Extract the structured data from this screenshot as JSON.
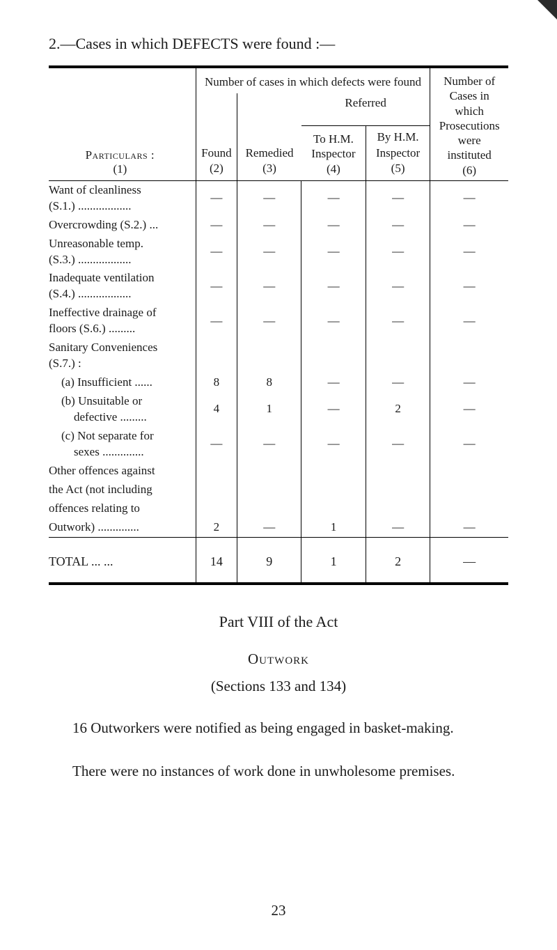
{
  "heading": "2.—Cases in which DEFECTS were found :—",
  "header": {
    "span_title": "Number of cases in which defects were found",
    "referred": "Referred",
    "particulars_label": "Particulars :",
    "particulars_num": "(1)",
    "found": "Found",
    "found_num": "(2)",
    "remedied": "Remedied",
    "remedied_num": "(3)",
    "tohm_l1": "To H.M.",
    "tohm_l2": "Inspector",
    "tohm_num": "(4)",
    "byhm_l1": "By H.M.",
    "byhm_l2": "Inspector",
    "byhm_num": "(5)",
    "numcases_l1": "Number of",
    "numcases_l2": "Cases in which",
    "numcases_l3": "Prosecutions",
    "numcases_l4": "were instituted",
    "numcases_num": "(6)"
  },
  "rows": [
    {
      "l1": "Want of cleanliness",
      "l2": "(S.1.) ..................",
      "c": [
        "—",
        "—",
        "—",
        "—",
        "—"
      ]
    },
    {
      "l1": "Overcrowding (S.2.) ...",
      "l2": "",
      "c": [
        "—",
        "—",
        "—",
        "—",
        "—"
      ]
    },
    {
      "l1": "Unreasonable temp.",
      "l2": "(S.3.) ..................",
      "c": [
        "—",
        "—",
        "—",
        "—",
        "—"
      ]
    },
    {
      "l1": "Inadequate ventilation",
      "l2": "(S.4.) ..................",
      "c": [
        "—",
        "—",
        "—",
        "—",
        "—"
      ]
    },
    {
      "l1": "Ineffective drainage of",
      "l2": "floors (S.6.)   .........",
      "c": [
        "—",
        "—",
        "—",
        "—",
        "—"
      ]
    },
    {
      "l1": "Sanitary Conveniences",
      "l2": "(S.7.) :",
      "c": [
        "",
        "",
        "",
        "",
        ""
      ]
    },
    {
      "l1": "(a) Insufficient ......",
      "l2": "",
      "c": [
        "8",
        "8",
        "—",
        "—",
        "—"
      ],
      "indent": 1
    },
    {
      "l1": "(b) Unsuitable or",
      "l2": "defective .........",
      "c": [
        "4",
        "1",
        "—",
        "2",
        "—"
      ],
      "indent": 1,
      "indent2": 2
    },
    {
      "l1": "(c) Not separate for",
      "l2": "sexes ..............",
      "c": [
        "—",
        "—",
        "—",
        "—",
        "—"
      ],
      "indent": 1,
      "indent2": 2
    },
    {
      "l1": "Other offences against",
      "l2": "",
      "c": [
        "",
        "",
        "",
        "",
        ""
      ]
    },
    {
      "l1": "the Act (not including",
      "l2": "",
      "c": [
        "",
        "",
        "",
        "",
        ""
      ]
    },
    {
      "l1": "offences relating to",
      "l2": "",
      "c": [
        "",
        "",
        "",
        "",
        ""
      ]
    },
    {
      "l1": "Outwork) ..............",
      "l2": "",
      "c": [
        "2",
        "—",
        "1",
        "—",
        "—"
      ]
    }
  ],
  "total": {
    "label": "TOTAL     ...     ...",
    "c": [
      "14",
      "9",
      "1",
      "2",
      "—"
    ]
  },
  "after": {
    "part": "Part VIII of the Act",
    "outwork": "Outwork",
    "sections": "(Sections 133 and 134)",
    "para1": "16 Outworkers were notified as being engaged in basket-making.",
    "para2": "There were no instances of work done in unwholesome premises."
  },
  "page_number": "23"
}
